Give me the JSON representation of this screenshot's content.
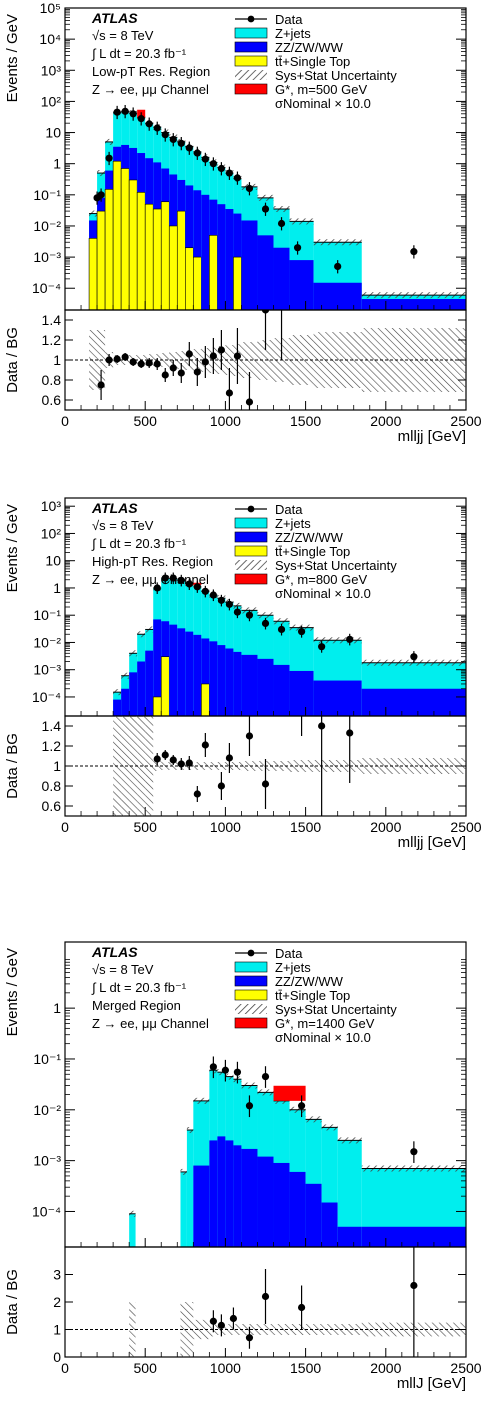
{
  "colors": {
    "zjets": "#00eeee",
    "diboson": "#0000ff",
    "top": "#ffff00",
    "signal": "#ff0000",
    "data": "#000000",
    "hatch": "#555555"
  },
  "icons": {
    "hatch_swatch": "uncertainty-hatch-icon"
  },
  "chart_data": [
    {
      "type": "bar",
      "name": "low-pt-resolved",
      "atlas_label": "ATLAS",
      "energy_label": "√s = 8 TeV",
      "lumi_label": "∫ L dt = 20.3 fb⁻¹",
      "region_label": "Low-pT Res. Region",
      "channel_label": "Z → ee, μμ Channel",
      "ylabel": "Events / GeV",
      "xlabel": "mlljj [GeV]",
      "ratio_ylabel": "Data / BG",
      "log_y": true,
      "ylim": [
        2e-05,
        100000
      ],
      "xlim": [
        0,
        2500
      ],
      "yticks": [
        {
          "v": 0.0001,
          "label": "10⁻⁴"
        },
        {
          "v": 0.001,
          "label": "10⁻³"
        },
        {
          "v": 0.01,
          "label": "10⁻²"
        },
        {
          "v": 0.1,
          "label": "10⁻¹"
        },
        {
          "v": 1,
          "label": "1"
        },
        {
          "v": 10,
          "label": "10"
        },
        {
          "v": 100,
          "label": "10²"
        },
        {
          "v": 1000,
          "label": "10³"
        },
        {
          "v": 10000,
          "label": "10⁴"
        },
        {
          "v": 100000,
          "label": "10⁵"
        }
      ],
      "xticks": [
        {
          "v": 0,
          "label": "0"
        },
        {
          "v": 500,
          "label": "500"
        },
        {
          "v": 1000,
          "label": "1000"
        },
        {
          "v": 1500,
          "label": "1500"
        },
        {
          "v": 2000,
          "label": "2000"
        },
        {
          "v": 2500,
          "label": "2500"
        }
      ],
      "bins": [
        150,
        200,
        250,
        300,
        350,
        400,
        450,
        500,
        550,
        600,
        650,
        700,
        750,
        800,
        850,
        900,
        950,
        1000,
        1050,
        1100,
        1200,
        1300,
        1400,
        1550,
        1850,
        2500
      ],
      "zjets": [
        0.025,
        0.5,
        5,
        45,
        48,
        42,
        30,
        20,
        15,
        10,
        7,
        5,
        3.6,
        2.4,
        1.6,
        1.1,
        0.75,
        0.5,
        0.33,
        0.18,
        0.08,
        0.035,
        0.014,
        0.003,
        6e-05
      ],
      "diboson": [
        0.015,
        0.08,
        0.6,
        3.5,
        4,
        3.2,
        2.2,
        1.5,
        1.1,
        0.7,
        0.45,
        0.3,
        0.2,
        0.14,
        0.1,
        0.07,
        0.05,
        0.035,
        0.025,
        0.015,
        0.005,
        0.002,
        0.0008,
        0.00015,
        4.5e-05
      ],
      "top": [
        0.004,
        0.03,
        0.15,
        1.2,
        0.7,
        0.3,
        0.12,
        0.05,
        0.035,
        0.06,
        0.01,
        0.03,
        0.002,
        0.001,
        0,
        0.005,
        0,
        0,
        0.001,
        0,
        0,
        0,
        0,
        0,
        0
      ],
      "signal_bins": [
        450,
        500
      ],
      "signal_value": 40,
      "data_x": [
        200,
        225,
        275,
        325,
        375,
        425,
        475,
        525,
        575,
        625,
        675,
        725,
        775,
        825,
        875,
        925,
        975,
        1025,
        1075,
        1150,
        1250,
        1350,
        1450,
        1700,
        2175
      ],
      "data_y": [
        0.08,
        0.1,
        1.5,
        45,
        48,
        40,
        28,
        19,
        14,
        8.5,
        6,
        4.5,
        3.2,
        2.2,
        1.4,
        1,
        0.7,
        0.5,
        0.35,
        0.16,
        0.035,
        0.012,
        0.002,
        0.0005,
        0.0015
      ],
      "ratio_yticks": [
        {
          "v": 0.6,
          "label": "0.6"
        },
        {
          "v": 0.8,
          "label": "0.8"
        },
        {
          "v": 1,
          "label": "1"
        },
        {
          "v": 1.2,
          "label": "1.2"
        },
        {
          "v": 1.4,
          "label": "1.4"
        }
      ],
      "ratio_ylim": [
        0.5,
        1.5
      ],
      "ratio": [
        {
          "x": 225,
          "y": 0.75,
          "e": 0.15
        },
        {
          "x": 275,
          "y": 1.0,
          "e": 0.06
        },
        {
          "x": 325,
          "y": 1.01,
          "e": 0.04
        },
        {
          "x": 375,
          "y": 1.03,
          "e": 0.04
        },
        {
          "x": 425,
          "y": 0.98,
          "e": 0.04
        },
        {
          "x": 475,
          "y": 0.96,
          "e": 0.04
        },
        {
          "x": 525,
          "y": 0.97,
          "e": 0.05
        },
        {
          "x": 575,
          "y": 0.96,
          "e": 0.06
        },
        {
          "x": 625,
          "y": 0.85,
          "e": 0.07
        },
        {
          "x": 675,
          "y": 0.92,
          "e": 0.08
        },
        {
          "x": 725,
          "y": 0.87,
          "e": 0.1
        },
        {
          "x": 775,
          "y": 1.06,
          "e": 0.12
        },
        {
          "x": 825,
          "y": 0.88,
          "e": 0.14
        },
        {
          "x": 875,
          "y": 0.98,
          "e": 0.16
        },
        {
          "x": 925,
          "y": 1.04,
          "e": 0.18
        },
        {
          "x": 975,
          "y": 1.1,
          "e": 0.2
        },
        {
          "x": 1025,
          "y": 0.67,
          "e": 0.25
        },
        {
          "x": 1075,
          "y": 1.04,
          "e": 0.28
        },
        {
          "x": 1150,
          "y": 0.58,
          "e": 0.3
        },
        {
          "x": 1250,
          "y": 1.5,
          "e": 0.4
        },
        {
          "x": 1350,
          "y": 1.6,
          "e": 0.6
        }
      ],
      "ratio_band": [
        0.3,
        0.3,
        0.08,
        0.05,
        0.05,
        0.05,
        0.05,
        0.06,
        0.06,
        0.07,
        0.08,
        0.09,
        0.1,
        0.11,
        0.12,
        0.13,
        0.14,
        0.15,
        0.16,
        0.18,
        0.2,
        0.22,
        0.25,
        0.28,
        0.32
      ],
      "legend": [
        {
          "label": "Data",
          "kind": "data"
        },
        {
          "label": "Z+jets",
          "kind": "zjets"
        },
        {
          "label": "ZZ/ZW/WW",
          "kind": "diboson"
        },
        {
          "label": "tt̄+Single Top",
          "kind": "top"
        },
        {
          "label": "Sys+Stat Uncertainty",
          "kind": "hatch"
        },
        {
          "label": "G*, m=500 GeV",
          "kind": "signal"
        },
        {
          "label": "σNominal × 10.0",
          "kind": "text"
        }
      ]
    },
    {
      "type": "bar",
      "name": "high-pt-resolved",
      "atlas_label": "ATLAS",
      "energy_label": "√s = 8 TeV",
      "lumi_label": "∫ L dt = 20.3 fb⁻¹",
      "region_label": "High-pT Res. Region",
      "channel_label": "Z → ee, μμ Channel",
      "ylabel": "Events / GeV",
      "xlabel": "mlljj [GeV]",
      "ratio_ylabel": "Data / BG",
      "log_y": true,
      "ylim": [
        2e-05,
        2000
      ],
      "xlim": [
        0,
        2500
      ],
      "yticks": [
        {
          "v": 0.0001,
          "label": "10⁻⁴"
        },
        {
          "v": 0.001,
          "label": "10⁻³"
        },
        {
          "v": 0.01,
          "label": "10⁻²"
        },
        {
          "v": 0.1,
          "label": "10⁻¹"
        },
        {
          "v": 1,
          "label": "1"
        },
        {
          "v": 10,
          "label": "10"
        },
        {
          "v": 100,
          "label": "10²"
        },
        {
          "v": 1000,
          "label": "10³"
        }
      ],
      "xticks": [
        {
          "v": 0,
          "label": "0"
        },
        {
          "v": 500,
          "label": "500"
        },
        {
          "v": 1000,
          "label": "1000"
        },
        {
          "v": 1500,
          "label": "1500"
        },
        {
          "v": 2000,
          "label": "2000"
        },
        {
          "v": 2500,
          "label": "2500"
        }
      ],
      "bins": [
        300,
        350,
        400,
        450,
        500,
        550,
        600,
        650,
        700,
        750,
        800,
        850,
        900,
        950,
        1000,
        1050,
        1100,
        1200,
        1300,
        1400,
        1550,
        1850,
        2500
      ],
      "zjets": [
        0.00015,
        0.0006,
        0.004,
        0.02,
        0.03,
        1.0,
        2.3,
        2.2,
        1.9,
        1.5,
        1.1,
        0.75,
        0.55,
        0.42,
        0.3,
        0.22,
        0.15,
        0.1,
        0.06,
        0.035,
        0.012,
        0.0018,
        0.0018
      ],
      "diboson": [
        8e-05,
        0.0002,
        0.0008,
        0.002,
        0.005,
        0.07,
        0.06,
        0.045,
        0.033,
        0.025,
        0.019,
        0.014,
        0.011,
        0.008,
        0.006,
        0.0045,
        0.0035,
        0.0025,
        0.0015,
        0.0009,
        0.0004,
        0.0002,
        0.0002
      ],
      "top": [
        0,
        0,
        0,
        0,
        0,
        0.0001,
        0.003,
        0,
        0,
        0,
        0,
        0.0003,
        0,
        0,
        0,
        0,
        0,
        0,
        0,
        0,
        0,
        0,
        0
      ],
      "signal_bins": [
        750,
        850
      ],
      "signal_value": 1.15,
      "data_x": [
        575,
        625,
        675,
        725,
        775,
        825,
        875,
        925,
        975,
        1025,
        1075,
        1150,
        1250,
        1350,
        1475,
        1600,
        1775,
        2175
      ],
      "data_y": [
        1.0,
        2.3,
        2.3,
        1.9,
        1.4,
        1.1,
        0.75,
        0.55,
        0.35,
        0.25,
        0.13,
        0.1,
        0.05,
        0.03,
        0.025,
        0.007,
        0.013,
        0.003
      ],
      "ratio_yticks": [
        {
          "v": 0.6,
          "label": "0.6"
        },
        {
          "v": 0.8,
          "label": "0.8"
        },
        {
          "v": 1,
          "label": "1"
        },
        {
          "v": 1.2,
          "label": "1.2"
        },
        {
          "v": 1.4,
          "label": "1.4"
        }
      ],
      "ratio_ylim": [
        0.5,
        1.5
      ],
      "ratio": [
        {
          "x": 575,
          "y": 1.07,
          "e": 0.06
        },
        {
          "x": 625,
          "y": 1.11,
          "e": 0.05
        },
        {
          "x": 675,
          "y": 1.06,
          "e": 0.05
        },
        {
          "x": 725,
          "y": 1.02,
          "e": 0.06
        },
        {
          "x": 775,
          "y": 1.03,
          "e": 0.07
        },
        {
          "x": 825,
          "y": 0.72,
          "e": 0.08
        },
        {
          "x": 875,
          "y": 1.21,
          "e": 0.12
        },
        {
          "x": 975,
          "y": 0.8,
          "e": 0.14
        },
        {
          "x": 1025,
          "y": 1.08,
          "e": 0.15
        },
        {
          "x": 1150,
          "y": 1.3,
          "e": 0.2
        },
        {
          "x": 1250,
          "y": 0.82,
          "e": 0.25
        },
        {
          "x": 1475,
          "y": 1.9,
          "e": 0.6
        },
        {
          "x": 1600,
          "y": 1.4,
          "e": 0.9
        },
        {
          "x": 1775,
          "y": 1.33,
          "e": 0.5
        }
      ],
      "ratio_band": [
        0.6,
        0.6,
        0.6,
        0.6,
        0.6,
        0.05,
        0.04,
        0.04,
        0.04,
        0.04,
        0.04,
        0.04,
        0.04,
        0.04,
        0.04,
        0.04,
        0.05,
        0.05,
        0.05,
        0.06,
        0.06,
        0.08,
        0.08
      ],
      "legend": [
        {
          "label": "Data",
          "kind": "data"
        },
        {
          "label": "Z+jets",
          "kind": "zjets"
        },
        {
          "label": "ZZ/ZW/WW",
          "kind": "diboson"
        },
        {
          "label": "tt̄+Single Top",
          "kind": "top"
        },
        {
          "label": "Sys+Stat Uncertainty",
          "kind": "hatch"
        },
        {
          "label": "G*, m=800 GeV",
          "kind": "signal"
        },
        {
          "label": "σNominal × 10.0",
          "kind": "text"
        }
      ]
    },
    {
      "type": "bar",
      "name": "merged",
      "atlas_label": "ATLAS",
      "energy_label": "√s = 8 TeV",
      "lumi_label": "∫ L dt = 20.3 fb⁻¹",
      "region_label": "Merged Region",
      "channel_label": "Z → ee, μμ Channel",
      "ylabel": "Events / GeV",
      "xlabel": "mllJ [GeV]",
      "ratio_ylabel": "Data / BG",
      "log_y": true,
      "ylim": [
        2e-05,
        20
      ],
      "xlim": [
        0,
        2500
      ],
      "yticks": [
        {
          "v": 0.0001,
          "label": "10⁻⁴"
        },
        {
          "v": 0.001,
          "label": "10⁻³"
        },
        {
          "v": 0.01,
          "label": "10⁻²"
        },
        {
          "v": 0.1,
          "label": "10⁻¹"
        },
        {
          "v": 1,
          "label": "1"
        }
      ],
      "xticks": [
        {
          "v": 0,
          "label": "0"
        },
        {
          "v": 500,
          "label": "500"
        },
        {
          "v": 1000,
          "label": "1000"
        },
        {
          "v": 1500,
          "label": "1500"
        },
        {
          "v": 2000,
          "label": "2000"
        },
        {
          "v": 2500,
          "label": "2500"
        }
      ],
      "bins": [
        400,
        440,
        720,
        760,
        800,
        900,
        950,
        1000,
        1050,
        1100,
        1200,
        1300,
        1400,
        1500,
        1600,
        1700,
        1850,
        2500
      ],
      "zjets": [
        9e-05,
        0,
        0.0006,
        0.004,
        0.015,
        0.06,
        0.055,
        0.045,
        0.04,
        0.03,
        0.022,
        0.015,
        0.01,
        0.0065,
        0.0045,
        0.0025,
        0.0007
      ],
      "diboson": [
        0,
        0,
        0,
        0,
        0.0008,
        0.0025,
        0.003,
        0.0025,
        0.002,
        0.0017,
        0.0012,
        0.0009,
        0.0006,
        0.00035,
        0.00015,
        5e-05,
        5e-05
      ],
      "top": [
        0,
        0,
        0,
        0,
        0,
        0,
        0,
        0,
        0,
        0,
        0,
        0,
        0,
        0,
        0,
        0,
        0
      ],
      "signal_bins": [
        1300,
        1500
      ],
      "signal_value": 0.022,
      "data_x": [
        925,
        1000,
        1075,
        1150,
        1250,
        1475,
        2175
      ],
      "data_y": [
        0.07,
        0.06,
        0.055,
        0.012,
        0.045,
        0.012,
        0.0015
      ],
      "ratio_yticks": [
        {
          "v": 0,
          "label": "0"
        },
        {
          "v": 1,
          "label": "1"
        },
        {
          "v": 2,
          "label": "2"
        },
        {
          "v": 3,
          "label": "3"
        }
      ],
      "ratio_ylim": [
        0,
        4
      ],
      "ratio": [
        {
          "x": 925,
          "y": 1.3,
          "e": 0.4
        },
        {
          "x": 975,
          "y": 1.15,
          "e": 0.4
        },
        {
          "x": 1050,
          "y": 1.4,
          "e": 0.4
        },
        {
          "x": 1150,
          "y": 0.7,
          "e": 0.4
        },
        {
          "x": 1250,
          "y": 2.2,
          "e": 1.0
        },
        {
          "x": 1475,
          "y": 1.8,
          "e": 0.8
        },
        {
          "x": 2175,
          "y": 2.6,
          "e": 2.6
        }
      ],
      "ratio_band": [
        1.0,
        0,
        1.0,
        1.0,
        0.35,
        0.25,
        0.2,
        0.2,
        0.2,
        0.2,
        0.2,
        0.2,
        0.2,
        0.2,
        0.2,
        0.2,
        0.25
      ],
      "legend": [
        {
          "label": "Data",
          "kind": "data"
        },
        {
          "label": "Z+jets",
          "kind": "zjets"
        },
        {
          "label": "ZZ/ZW/WW",
          "kind": "diboson"
        },
        {
          "label": "tt̄+Single Top",
          "kind": "top"
        },
        {
          "label": "Sys+Stat Uncertainty",
          "kind": "hatch"
        },
        {
          "label": "G*, m=1400 GeV",
          "kind": "signal"
        },
        {
          "label": "σNominal × 10.0",
          "kind": "text"
        }
      ]
    }
  ]
}
